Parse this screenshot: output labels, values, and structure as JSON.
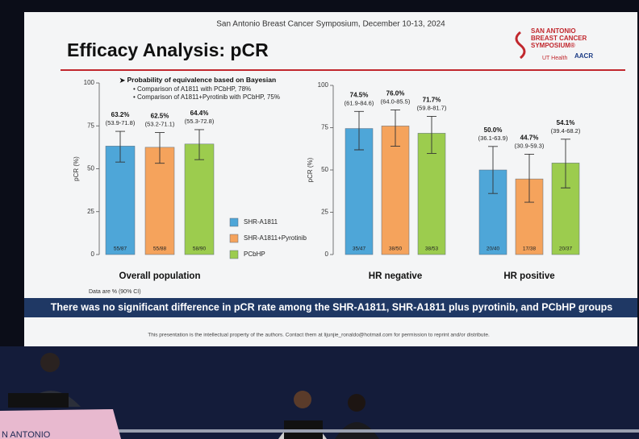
{
  "slide": {
    "header": "San Antonio Breast Cancer Symposium, December 10-13, 2024",
    "title": "Efficacy Analysis: pCR",
    "logo": "SAN ANTONIO BREAST CANCER SYMPOSIUM®",
    "logo_ut": "UT Health",
    "logo_aacr": "AACR",
    "bayes_title": "Probability of equivalence based on Bayesian",
    "bayes_items": [
      "Comparison of A1811 with PCbHP, 78%",
      "Comparison of A1811+Pyrotinib with PCbHP, 75%"
    ],
    "note": "Data are % (90% CI)",
    "banner": "There was no significant difference in pCR rate among the SHR-A1811, SHR-A1811 plus pyrotinib, and PCbHP groups",
    "footer": "This presentation is the intellectual property of the authors. Contact them at lijunjie_ronaldo@hotmail.com for permission to reprint and/or distribute.",
    "podium": "N ANTONIO"
  },
  "chart_data": [
    {
      "type": "bar",
      "ylabel": "pCR (%)",
      "categories": [
        "Overall population"
      ],
      "ylim": [
        0,
        100
      ],
      "yticks": [
        0,
        25,
        50,
        75,
        100
      ],
      "series": [
        {
          "name": "SHR-A1811",
          "color": "#4ea6d8",
          "values": [
            63.2
          ],
          "value_labels": [
            "63.2%"
          ],
          "ci_low": [
            53.9
          ],
          "ci_high": [
            71.8
          ],
          "ci_labels": [
            "(53.9-71.8)"
          ],
          "n_labels": [
            "55/87"
          ]
        },
        {
          "name": "SHR-A1811+Pyrotinib",
          "color": "#f5a35c",
          "values": [
            62.5
          ],
          "value_labels": [
            "62.5%"
          ],
          "ci_low": [
            53.2
          ],
          "ci_high": [
            71.1
          ],
          "ci_labels": [
            "(53.2-71.1)"
          ],
          "n_labels": [
            "55/88"
          ]
        },
        {
          "name": "PCbHP",
          "color": "#9ccc4e",
          "values": [
            64.4
          ],
          "value_labels": [
            "64.4%"
          ],
          "ci_low": [
            55.3
          ],
          "ci_high": [
            72.8
          ],
          "ci_labels": [
            "(55.3-72.8)"
          ],
          "n_labels": [
            "58/90"
          ]
        }
      ]
    },
    {
      "type": "bar",
      "ylabel": "pCR (%)",
      "categories": [
        "HR negative",
        "HR positive"
      ],
      "ylim": [
        0,
        100
      ],
      "yticks": [
        0,
        25,
        50,
        75,
        100
      ],
      "series": [
        {
          "color": "#4ea6d8",
          "values": [
            74.5,
            50.0
          ],
          "value_labels": [
            "74.5%",
            "50.0%"
          ],
          "ci_low": [
            61.9,
            36.1
          ],
          "ci_high": [
            84.6,
            63.9
          ],
          "ci_labels": [
            "(61.9-84.6)",
            "(36.1-63.9)"
          ],
          "n_labels": [
            "35/47",
            "20/40"
          ]
        },
        {
          "color": "#f5a35c",
          "values": [
            76.0,
            44.7
          ],
          "value_labels": [
            "76.0%",
            "44.7%"
          ],
          "ci_low": [
            64.0,
            30.9
          ],
          "ci_high": [
            85.5,
            59.3
          ],
          "ci_labels": [
            "(64.0-85.5)",
            "(30.9-59.3)"
          ],
          "n_labels": [
            "38/50",
            "17/38"
          ]
        },
        {
          "color": "#9ccc4e",
          "values": [
            71.7,
            54.1
          ],
          "value_labels": [
            "71.7%",
            "54.1%"
          ],
          "ci_low": [
            59.8,
            39.4
          ],
          "ci_high": [
            81.7,
            68.2
          ],
          "ci_labels": [
            "(59.8-81.7)",
            "(39.4-68.2)"
          ],
          "n_labels": [
            "38/53",
            "20/37"
          ]
        }
      ]
    }
  ]
}
